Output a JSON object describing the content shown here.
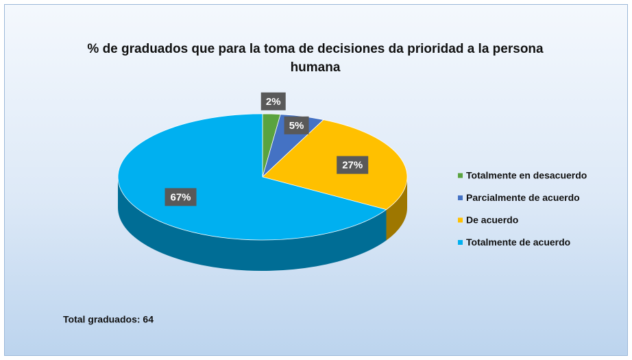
{
  "chart_data": {
    "type": "pie",
    "title": "% de graduados que para la toma de decisiones  da prioridad a la persona humana",
    "categories": [
      "Totalmente en desacuerdo",
      "Parcialmente de acuerdo",
      "De acuerdo",
      "Totalmente de acuerdo"
    ],
    "values": [
      2,
      5,
      27,
      67
    ],
    "value_labels": [
      "2%",
      "5%",
      "27%",
      "67%"
    ],
    "colors": [
      "#5aa33f",
      "#4472c4",
      "#ffc000",
      "#00b0f0"
    ],
    "legend": "right",
    "annotation": "Total graduados: 64"
  }
}
